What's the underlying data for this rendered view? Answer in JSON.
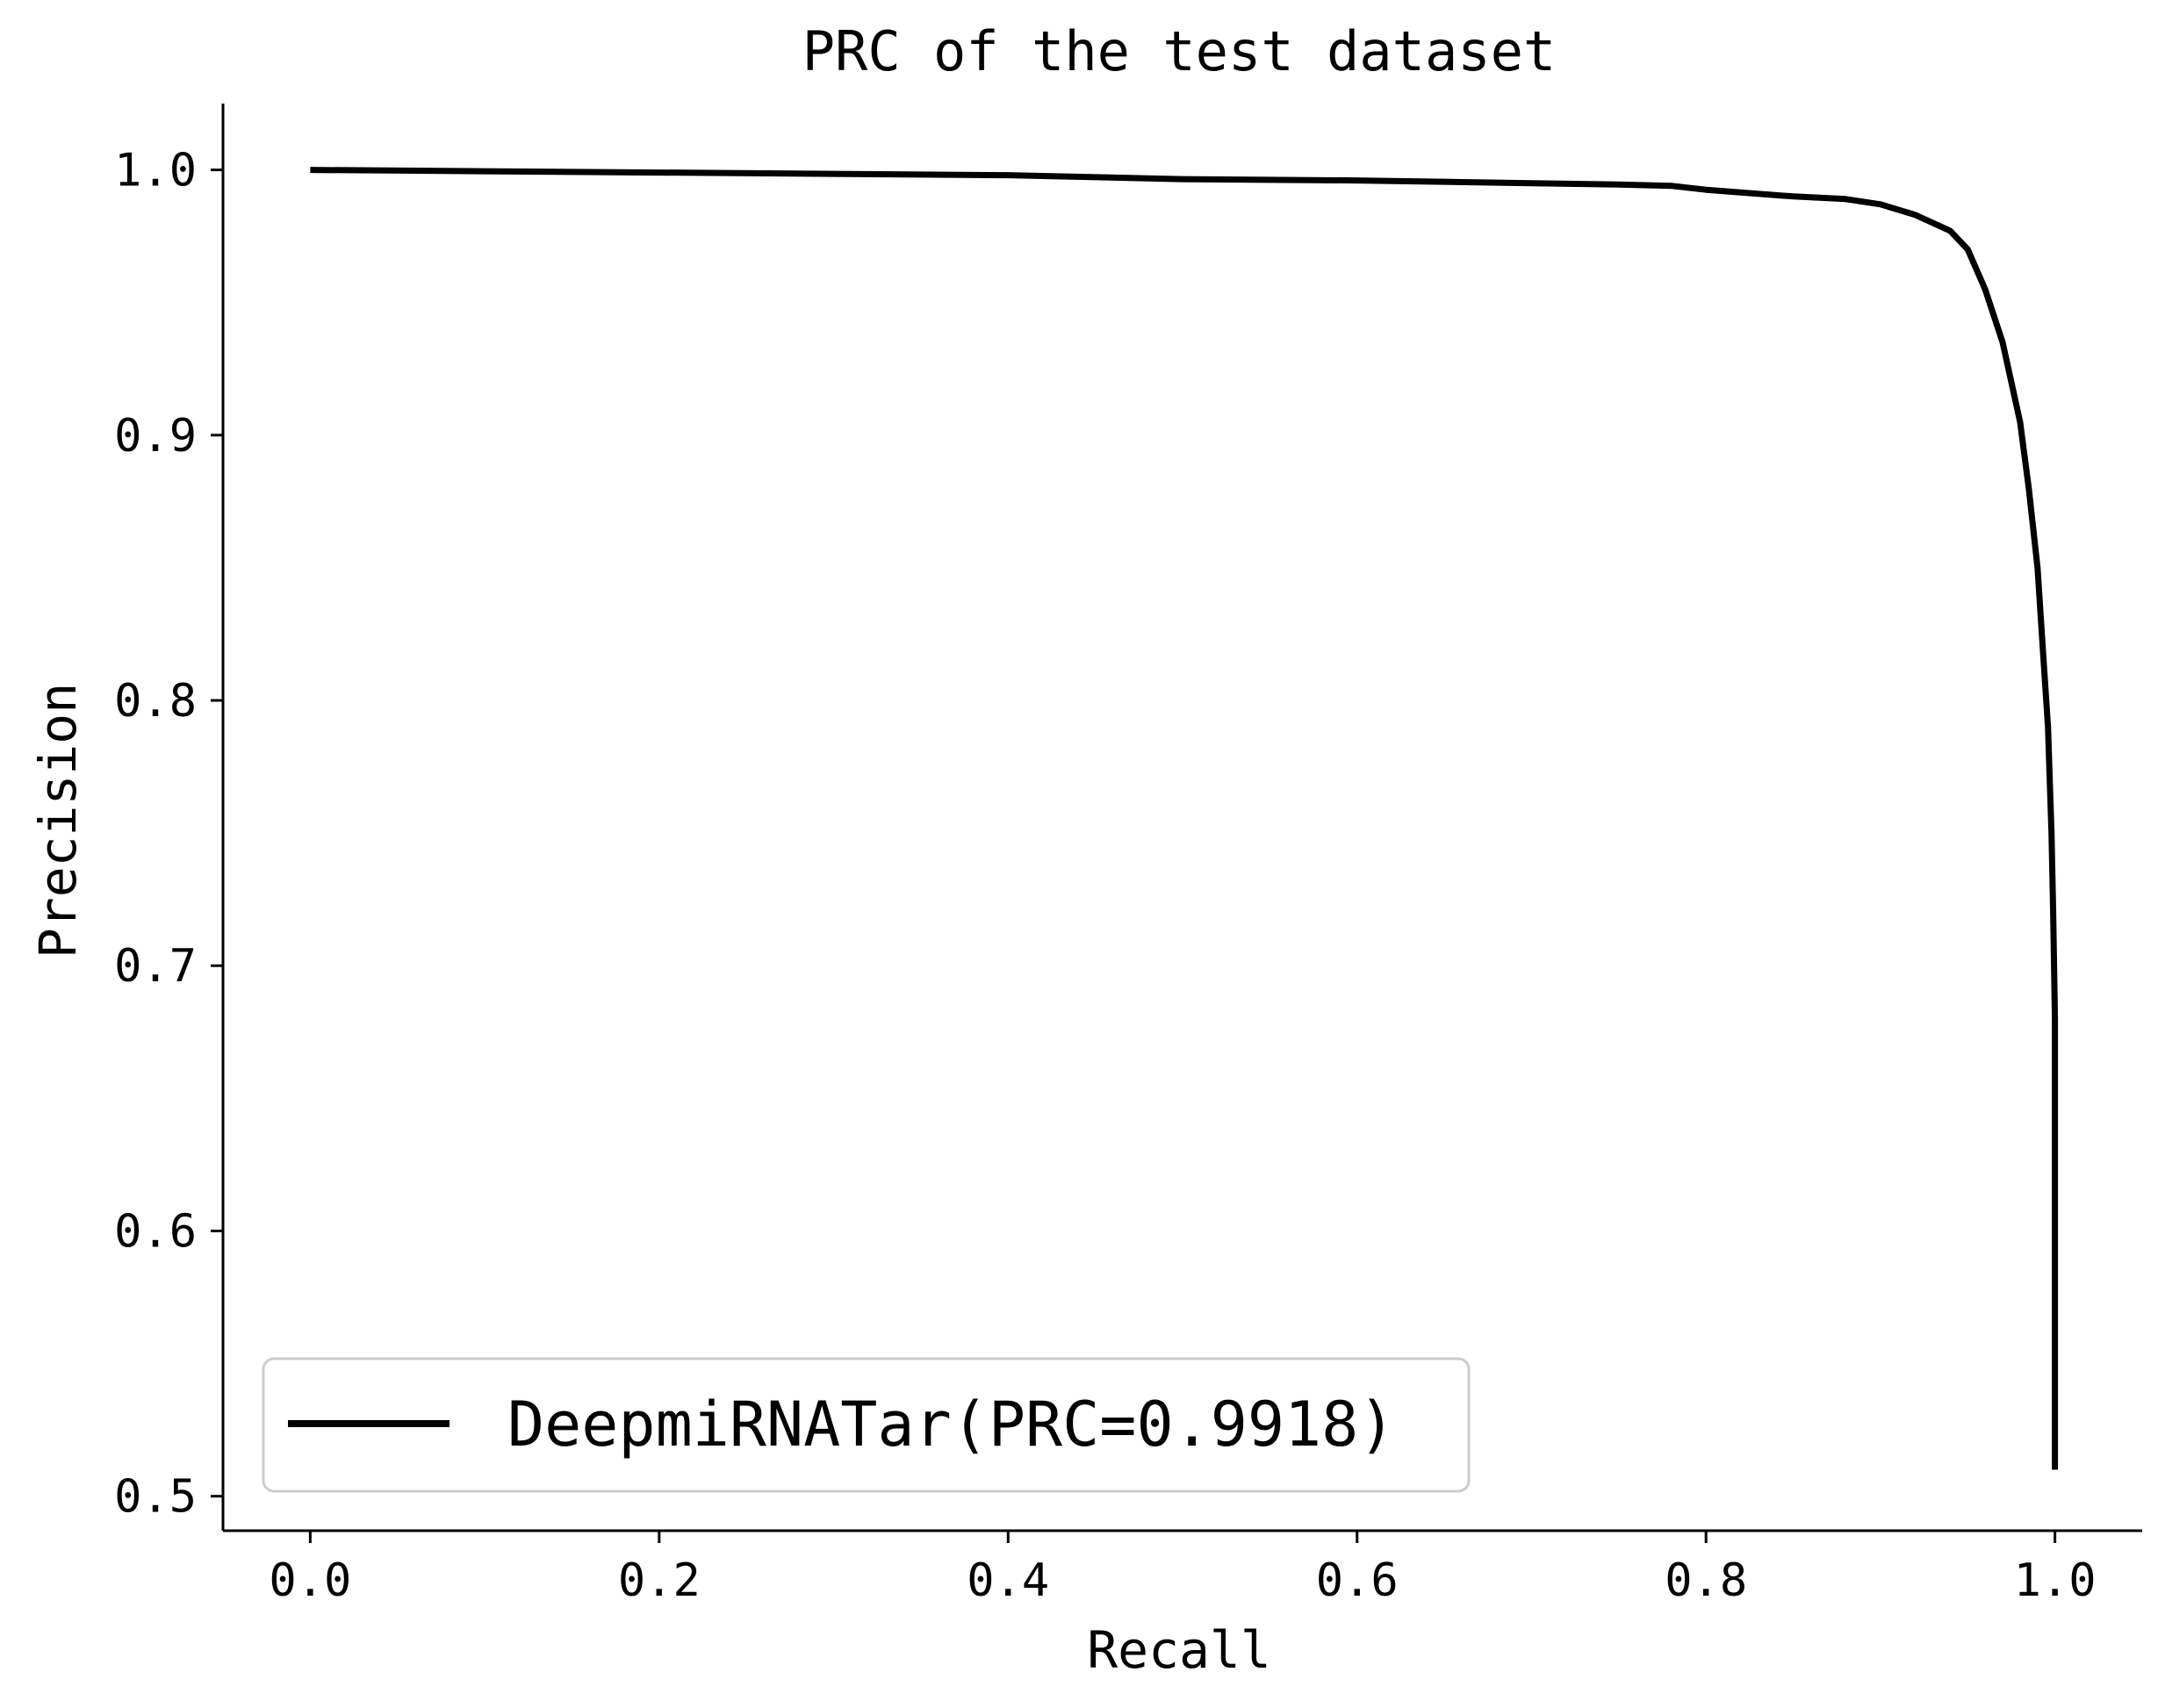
{
  "chart_data": {
    "type": "line",
    "title": "PRC of the test dataset",
    "xlabel": "Recall",
    "ylabel": "Precision",
    "xlim": [
      -0.05,
      1.05
    ],
    "ylim": [
      0.487,
      1.025
    ],
    "xticks": [
      0.0,
      0.2,
      0.4,
      0.6,
      0.8,
      1.0
    ],
    "xtick_labels": [
      "0.0",
      "0.2",
      "0.4",
      "0.6",
      "0.8",
      "1.0"
    ],
    "yticks": [
      0.5,
      0.6,
      0.7,
      0.8,
      0.9,
      1.0
    ],
    "ytick_labels": [
      "0.5",
      "0.6",
      "0.7",
      "0.8",
      "0.9",
      "1.0"
    ],
    "grid": false,
    "legend_position": "lower-left",
    "series": [
      {
        "name": "DeepmiRNATar(PRC=0.9918)",
        "color": "#000000",
        "points": [
          [
            0.0,
            1.0
          ],
          [
            0.1,
            0.9995
          ],
          [
            0.2,
            0.999
          ],
          [
            0.3,
            0.9985
          ],
          [
            0.4,
            0.998
          ],
          [
            0.5,
            0.9965
          ],
          [
            0.6,
            0.996
          ],
          [
            0.7,
            0.995
          ],
          [
            0.75,
            0.9945
          ],
          [
            0.78,
            0.994
          ],
          [
            0.8,
            0.9925
          ],
          [
            0.85,
            0.99
          ],
          [
            0.88,
            0.989
          ],
          [
            0.9,
            0.987
          ],
          [
            0.92,
            0.983
          ],
          [
            0.94,
            0.977
          ],
          [
            0.95,
            0.97
          ],
          [
            0.96,
            0.955
          ],
          [
            0.97,
            0.935
          ],
          [
            0.98,
            0.905
          ],
          [
            0.985,
            0.88
          ],
          [
            0.99,
            0.85
          ],
          [
            0.993,
            0.82
          ],
          [
            0.996,
            0.79
          ],
          [
            0.998,
            0.75
          ],
          [
            0.999,
            0.72
          ],
          [
            1.0,
            0.68
          ],
          [
            1.0,
            0.6
          ],
          [
            1.0,
            0.51
          ]
        ]
      }
    ]
  }
}
